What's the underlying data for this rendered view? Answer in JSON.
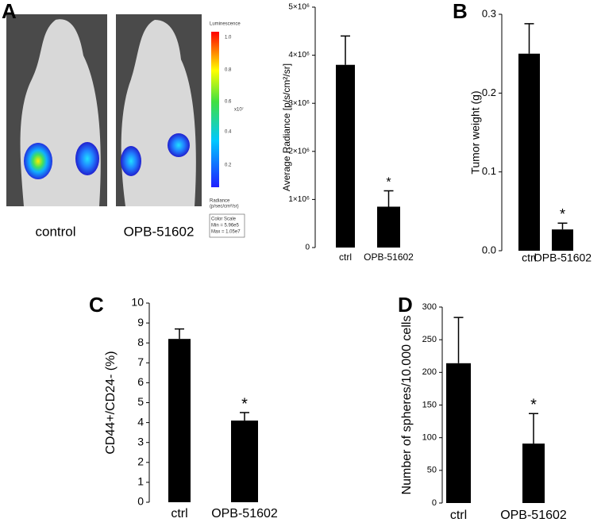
{
  "image_panel": {
    "panel_label": "A",
    "colorbar_title": "Luminescence",
    "colorbar_ticks": [
      "1.0",
      "0.8",
      "0.6",
      "0.4",
      "0.2"
    ],
    "colorbar_unit": "x10⁷",
    "radiance_label": "Radiance",
    "radiance_unit": "(p/sec/cm²/sr)",
    "color_scale": [
      "Color Scale",
      "Min = 5.96e5",
      "Max = 1.05e7"
    ],
    "image_labels": [
      "control",
      "OPB-51602"
    ]
  },
  "chart_data": [
    {
      "type": "bar",
      "ylabel": "Average Radiance [p/s/cm²/sr]",
      "categories": [
        "ctrl",
        "OPB-51602"
      ],
      "values": [
        3800000,
        850000
      ],
      "errors": [
        600000,
        330000
      ],
      "annotation": "*",
      "color": "#000000",
      "ylim": [
        0,
        5000000
      ],
      "yticks": [
        0,
        {
          "value": 1000000,
          "label": "1×10⁶"
        },
        {
          "value": 2000000,
          "label": "2×10⁶"
        },
        {
          "value": 3000000,
          "label": "3×10⁶"
        },
        {
          "value": 4000000,
          "label": "4×10⁶"
        },
        {
          "value": 5000000,
          "label": "5×10⁶"
        }
      ]
    },
    {
      "type": "bar",
      "panel_label": "B",
      "ylabel": "Tumor weight (g)",
      "categories": [
        "ctrl",
        "OPB-51602"
      ],
      "values": [
        0.25,
        0.027
      ],
      "errors": [
        0.038,
        0.008
      ],
      "annotation": "*",
      "color": "#000000",
      "ylim": [
        0,
        0.3
      ],
      "yticks": [
        {
          "value": 0,
          "label": "0.0"
        },
        0.1,
        0.2,
        0.3
      ]
    },
    {
      "type": "bar",
      "panel_label": "C",
      "ylabel": "CD44+/CD24- (%)",
      "categories": [
        "ctrl",
        "OPB-51602"
      ],
      "values": [
        8.2,
        4.1
      ],
      "errors": [
        0.5,
        0.4
      ],
      "annotation": "*",
      "color": "#000000",
      "ylim": [
        0,
        10
      ],
      "yticks": [
        0,
        1,
        2,
        3,
        4,
        5,
        6,
        7,
        8,
        9,
        10
      ]
    },
    {
      "type": "bar",
      "panel_label": "D",
      "ylabel": "Number of spheres/10.000 cells",
      "categories": [
        "ctrl",
        "OPB-51602"
      ],
      "values": [
        214,
        91
      ],
      "errors": [
        70,
        46
      ],
      "annotation": "*",
      "color": "#000000",
      "ylim": [
        0,
        300
      ],
      "yticks": [
        0,
        50,
        100,
        150,
        200,
        250,
        300
      ]
    }
  ]
}
